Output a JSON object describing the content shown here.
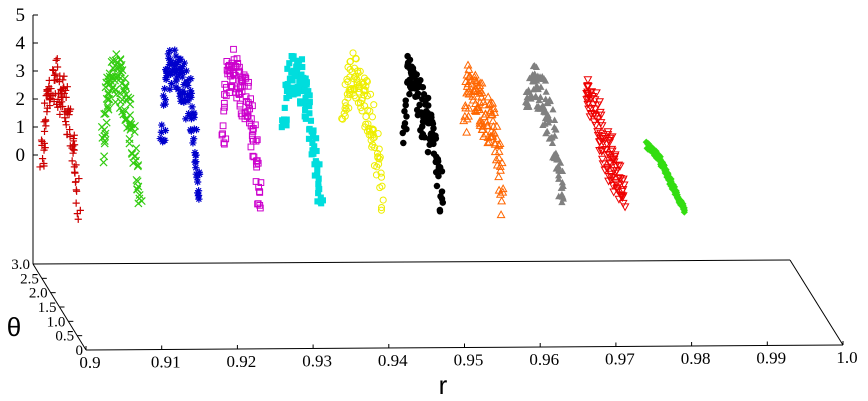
{
  "chart_data": {
    "type": "scatter",
    "projection": "3d",
    "title": "",
    "xlabel": "r",
    "ylabel": "θ",
    "zlabel": "",
    "xlim": [
      0.9,
      1.0
    ],
    "ylim": [
      0,
      3.0
    ],
    "zlim": [
      0,
      5
    ],
    "x_ticks": [
      "0.9",
      "0.91",
      "0.92",
      "0.93",
      "0.94",
      "0.95",
      "0.96",
      "0.97",
      "0.98",
      "0.99",
      "1.0"
    ],
    "y_ticks": [
      "0",
      "0.5",
      "1.0",
      "1.5",
      "2.0",
      "2.5",
      "3.0"
    ],
    "z_ticks": [
      "0",
      "1",
      "2",
      "3",
      "4",
      "5"
    ],
    "legend": "none",
    "series": [
      {
        "marker": "plus",
        "color": "#cc0000",
        "r_range": [
          0.9,
          0.905
        ],
        "z_profile": [
          [
            0.0,
            0.0
          ],
          [
            0.15,
            2.2
          ],
          [
            0.35,
            3.3
          ],
          [
            0.55,
            2.8
          ],
          [
            0.75,
            1.8
          ],
          [
            0.88,
            0.5
          ],
          [
            1.0,
            -1.7
          ]
        ]
      },
      {
        "marker": "cross",
        "color": "#33cc11",
        "r_range": [
          0.908,
          0.913
        ],
        "z_profile": [
          [
            0.0,
            0.5
          ],
          [
            0.15,
            2.8
          ],
          [
            0.3,
            3.5
          ],
          [
            0.5,
            3.0
          ],
          [
            0.72,
            2.3
          ],
          [
            0.85,
            1.0
          ],
          [
            1.0,
            -1.4
          ]
        ]
      },
      {
        "marker": "star",
        "color": "#0000cc",
        "r_range": [
          0.916,
          0.921
        ],
        "z_profile": [
          [
            0.0,
            0.8
          ],
          [
            0.12,
            3.2
          ],
          [
            0.28,
            3.8
          ],
          [
            0.5,
            3.2
          ],
          [
            0.72,
            2.4
          ],
          [
            0.85,
            1.0
          ],
          [
            1.0,
            -1.2
          ]
        ]
      },
      {
        "marker": "square",
        "color": "#cc00cc",
        "r_range": [
          0.924,
          0.929
        ],
        "z_profile": [
          [
            0.0,
            0.7
          ],
          [
            0.12,
            3.2
          ],
          [
            0.3,
            3.8
          ],
          [
            0.5,
            3.0
          ],
          [
            0.7,
            2.4
          ],
          [
            0.85,
            0.8
          ],
          [
            1.0,
            -1.2
          ]
        ]
      },
      {
        "marker": "filled-square",
        "color": "#00dddd",
        "r_range": [
          0.932,
          0.937
        ],
        "z_profile": [
          [
            0.0,
            1.6
          ],
          [
            0.18,
            3.3
          ],
          [
            0.38,
            3.5
          ],
          [
            0.6,
            2.6
          ],
          [
            0.78,
            1.4
          ],
          [
            0.9,
            -0.3
          ],
          [
            1.0,
            -1.3
          ]
        ]
      },
      {
        "marker": "circle",
        "color": "#eeee00",
        "r_range": [
          0.94,
          0.945
        ],
        "z_profile": [
          [
            0.0,
            1.8
          ],
          [
            0.2,
            3.6
          ],
          [
            0.38,
            3.0
          ],
          [
            0.6,
            2.4
          ],
          [
            0.8,
            1.4
          ],
          [
            0.92,
            0.0
          ],
          [
            1.0,
            -1.2
          ]
        ]
      },
      {
        "marker": "filled-circle",
        "color": "#000000",
        "r_range": [
          0.948,
          0.953
        ],
        "z_profile": [
          [
            0.0,
            1.0
          ],
          [
            0.12,
            3.6
          ],
          [
            0.32,
            2.7
          ],
          [
            0.55,
            1.8
          ],
          [
            0.78,
            1.2
          ],
          [
            0.9,
            0.2
          ],
          [
            1.0,
            -1.3
          ]
        ]
      },
      {
        "marker": "triangle",
        "color": "#ff6600",
        "r_range": [
          0.956,
          0.961
        ],
        "z_profile": [
          [
            0.0,
            1.6
          ],
          [
            0.12,
            3.3
          ],
          [
            0.35,
            2.4
          ],
          [
            0.6,
            1.8
          ],
          [
            0.8,
            1.4
          ],
          [
            0.92,
            0.2
          ],
          [
            1.0,
            -1.3
          ]
        ]
      },
      {
        "marker": "filled-triangle",
        "color": "#808080",
        "r_range": [
          0.964,
          0.969
        ],
        "z_profile": [
          [
            0.0,
            2.4
          ],
          [
            0.2,
            3.2
          ],
          [
            0.45,
            2.5
          ],
          [
            0.7,
            1.6
          ],
          [
            0.85,
            0.4
          ],
          [
            1.0,
            -1.3
          ]
        ]
      },
      {
        "marker": "triangle-down",
        "color": "#ee0000",
        "r_range": [
          0.972,
          0.977
        ],
        "z_profile": [
          [
            0.0,
            3.0
          ],
          [
            0.2,
            2.2
          ],
          [
            0.45,
            1.1
          ],
          [
            0.7,
            0.2
          ],
          [
            0.85,
            -0.3
          ],
          [
            1.0,
            -1.1
          ]
        ]
      },
      {
        "marker": "filled-diamond",
        "color": "#33dd11",
        "r_range": [
          0.98,
          0.985
        ],
        "z_profile": [
          [
            0.0,
            0.9
          ],
          [
            0.3,
            0.5
          ],
          [
            0.55,
            -0.2
          ],
          [
            0.8,
            -0.9
          ],
          [
            1.0,
            -1.4
          ]
        ]
      }
    ]
  }
}
